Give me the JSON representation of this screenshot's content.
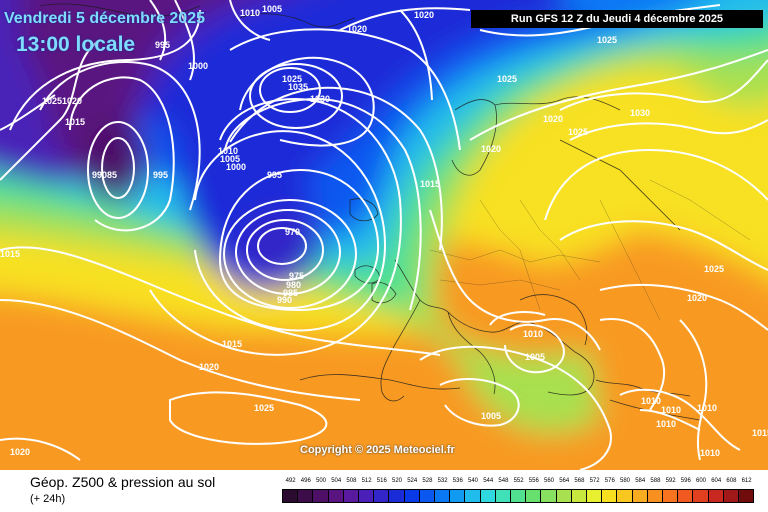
{
  "header": {
    "valid_date": "Vendredi 5 décembre 2025",
    "valid_time": "13:00 locale",
    "run_info": "Run GFS 12 Z du Jeudi 4 décembre 2025"
  },
  "copyright": "Copyright © 2025 Meteociel.fr",
  "legend": {
    "title": "Géop. Z500 & pression au sol",
    "subtitle": "(+ 24h)",
    "ticks": [
      "492",
      "496",
      "500",
      "504",
      "508",
      "512",
      "516",
      "520",
      "524",
      "528",
      "532",
      "536",
      "540",
      "544",
      "548",
      "552",
      "556",
      "560",
      "564",
      "568",
      "572",
      "576",
      "580",
      "584",
      "588",
      "592",
      "596",
      "600",
      "604",
      "608",
      "612"
    ],
    "colors": [
      "#2a0a2e",
      "#3d0d4a",
      "#4e1066",
      "#5a1480",
      "#5a1aa0",
      "#4a20b8",
      "#3226c8",
      "#1a2cd8",
      "#0a3ae8",
      "#0a58f0",
      "#0a78f4",
      "#109af2",
      "#20bcec",
      "#30d8e0",
      "#40e0b8",
      "#50e090",
      "#68e070",
      "#88e060",
      "#a8e050",
      "#c8e840",
      "#e8f030",
      "#f8e020",
      "#f8c820",
      "#f8ac20",
      "#f89020",
      "#f87420",
      "#f05a20",
      "#e04020",
      "#c82820",
      "#a01818",
      "#700c0c"
    ]
  },
  "isobar_labels": [
    {
      "text": "1010"
    },
    {
      "text": "1005"
    },
    {
      "text": "1020"
    },
    {
      "text": "1020"
    },
    {
      "text": "995"
    },
    {
      "text": "1025"
    },
    {
      "text": "1000"
    },
    {
      "text": "1025"
    },
    {
      "text": "1035"
    },
    {
      "text": "1030"
    },
    {
      "text": "1025"
    },
    {
      "text": "10251020"
    },
    {
      "text": "1015"
    },
    {
      "text": "1020"
    },
    {
      "text": "1025"
    },
    {
      "text": "1030"
    },
    {
      "text": "1010"
    },
    {
      "text": "1005"
    },
    {
      "text": "1000"
    },
    {
      "text": "1020"
    },
    {
      "text": "99085"
    },
    {
      "text": "995"
    },
    {
      "text": "995"
    },
    {
      "text": "1015"
    },
    {
      "text": "970"
    },
    {
      "text": "975"
    },
    {
      "text": "980"
    },
    {
      "text": "985"
    },
    {
      "text": "990"
    },
    {
      "text": "1015"
    },
    {
      "text": "1025"
    },
    {
      "text": "1020"
    },
    {
      "text": "1010"
    },
    {
      "text": "1005"
    },
    {
      "text": "1015"
    },
    {
      "text": "1020"
    },
    {
      "text": "1005"
    },
    {
      "text": "1025"
    },
    {
      "text": "1010"
    },
    {
      "text": "1010"
    },
    {
      "text": "1010"
    },
    {
      "text": "1010"
    },
    {
      "text": "1020"
    },
    {
      "text": "1010"
    },
    {
      "text": "1015"
    }
  ]
}
